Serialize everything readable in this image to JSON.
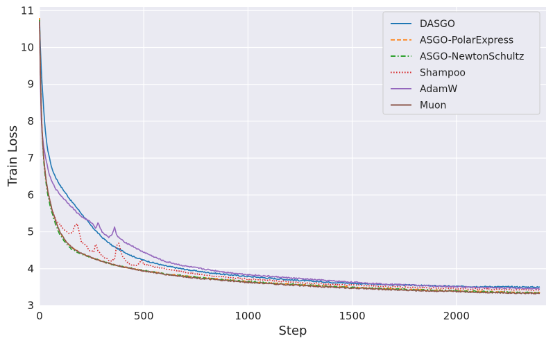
{
  "chart_data": {
    "type": "line",
    "title": "",
    "xlabel": "Step",
    "ylabel": "Train Loss",
    "xlim": [
      0,
      2430
    ],
    "ylim": [
      3,
      11.1
    ],
    "xticks": [
      0,
      500,
      1000,
      1500,
      2000
    ],
    "xtick_labels": [
      "0",
      "500",
      "1000",
      "1500",
      "2000"
    ],
    "yticks": [
      3,
      4,
      5,
      6,
      7,
      8,
      9,
      10,
      11
    ],
    "ytick_labels": [
      "3",
      "4",
      "5",
      "6",
      "7",
      "8",
      "9",
      "10",
      "11"
    ],
    "grid": true,
    "legend_position": "top-right",
    "series": [
      {
        "name": "DASGO",
        "color": "#1f77b4",
        "dash": "solid",
        "x": [
          0,
          5,
          10,
          20,
          30,
          40,
          50,
          60,
          80,
          100,
          125,
          150,
          175,
          200,
          250,
          300,
          350,
          400,
          450,
          500,
          600,
          700,
          800,
          900,
          1000,
          1200,
          1400,
          1600,
          1800,
          2000,
          2200,
          2400
        ],
        "y": [
          10.75,
          9.8,
          9.2,
          8.3,
          7.6,
          7.2,
          6.95,
          6.7,
          6.45,
          6.25,
          6.05,
          5.85,
          5.68,
          5.5,
          5.15,
          4.85,
          4.62,
          4.47,
          4.33,
          4.23,
          4.08,
          3.98,
          3.9,
          3.84,
          3.79,
          3.7,
          3.63,
          3.58,
          3.55,
          3.52,
          3.51,
          3.5
        ]
      },
      {
        "name": "ASGO-PolarExpress",
        "color": "#ff7f0e",
        "dash": "dashed",
        "x": [
          0,
          5,
          10,
          20,
          30,
          40,
          50,
          60,
          80,
          100,
          125,
          150,
          175,
          200,
          250,
          300,
          350,
          400,
          500,
          600,
          700,
          800,
          1000,
          1200,
          1400,
          1600,
          1800,
          2000,
          2200,
          2400
        ],
        "y": [
          10.8,
          9.0,
          8.0,
          7.0,
          6.45,
          6.1,
          5.82,
          5.6,
          5.25,
          4.98,
          4.75,
          4.6,
          4.5,
          4.42,
          4.3,
          4.2,
          4.12,
          4.05,
          3.95,
          3.86,
          3.8,
          3.74,
          3.65,
          3.58,
          3.52,
          3.47,
          3.43,
          3.4,
          3.37,
          3.35
        ]
      },
      {
        "name": "ASGO-NewtonSchultz",
        "color": "#2ca02c",
        "dash": "dashdot",
        "x": [
          0,
          5,
          10,
          20,
          30,
          40,
          50,
          60,
          80,
          100,
          125,
          150,
          175,
          200,
          250,
          300,
          350,
          400,
          500,
          600,
          700,
          800,
          1000,
          1200,
          1400,
          1600,
          1800,
          2000,
          2200,
          2400
        ],
        "y": [
          10.75,
          8.9,
          7.9,
          6.9,
          6.35,
          6.0,
          5.72,
          5.5,
          5.15,
          4.9,
          4.7,
          4.55,
          4.46,
          4.4,
          4.3,
          4.2,
          4.12,
          4.05,
          3.95,
          3.86,
          3.8,
          3.74,
          3.65,
          3.58,
          3.52,
          3.47,
          3.43,
          3.4,
          3.37,
          3.35
        ]
      },
      {
        "name": "Shampoo",
        "color": "#d62728",
        "dash": "dotted",
        "x": [
          0,
          5,
          10,
          20,
          30,
          40,
          50,
          60,
          80,
          100,
          120,
          140,
          160,
          170,
          180,
          190,
          200,
          220,
          240,
          260,
          270,
          280,
          300,
          320,
          340,
          360,
          370,
          380,
          390,
          400,
          420,
          440,
          460,
          480,
          490,
          500,
          550,
          600,
          700,
          800,
          1000,
          1200,
          1400,
          1600,
          1800,
          2000,
          2200,
          2400
        ],
        "y": [
          10.7,
          8.9,
          7.9,
          7.0,
          6.45,
          6.1,
          5.85,
          5.6,
          5.3,
          5.2,
          5.05,
          4.95,
          5.0,
          5.2,
          5.22,
          5.0,
          4.75,
          4.65,
          4.5,
          4.45,
          4.7,
          4.5,
          4.35,
          4.28,
          4.2,
          4.25,
          4.65,
          4.7,
          4.45,
          4.3,
          4.18,
          4.12,
          4.08,
          4.15,
          4.25,
          4.12,
          4.05,
          4.0,
          3.9,
          3.82,
          3.72,
          3.64,
          3.58,
          3.53,
          3.49,
          3.46,
          3.44,
          3.42
        ]
      },
      {
        "name": "AdamW",
        "color": "#9467bd",
        "dash": "solid",
        "x": [
          0,
          5,
          10,
          20,
          30,
          40,
          50,
          60,
          80,
          100,
          125,
          150,
          175,
          200,
          220,
          250,
          270,
          280,
          300,
          330,
          350,
          360,
          370,
          400,
          450,
          480,
          500,
          550,
          600,
          700,
          800,
          900,
          1000,
          1200,
          1400,
          1600,
          1800,
          2000,
          2200,
          2400
        ],
        "y": [
          10.7,
          8.6,
          7.8,
          7.3,
          7.0,
          6.7,
          6.5,
          6.35,
          6.15,
          6.0,
          5.85,
          5.7,
          5.55,
          5.42,
          5.35,
          5.25,
          5.1,
          5.25,
          5.0,
          4.85,
          4.95,
          5.12,
          4.9,
          4.75,
          4.6,
          4.5,
          4.45,
          4.32,
          4.2,
          4.07,
          3.98,
          3.9,
          3.84,
          3.75,
          3.67,
          3.6,
          3.55,
          3.51,
          3.48,
          3.46
        ]
      },
      {
        "name": "Muon",
        "color": "#8c564b",
        "dash": "solid",
        "x": [
          0,
          5,
          10,
          20,
          30,
          40,
          50,
          60,
          80,
          100,
          125,
          150,
          175,
          200,
          250,
          300,
          350,
          400,
          500,
          600,
          700,
          800,
          1000,
          1200,
          1400,
          1600,
          1800,
          2000,
          2200,
          2400
        ],
        "y": [
          10.7,
          8.95,
          7.95,
          7.0,
          6.45,
          6.1,
          5.85,
          5.6,
          5.25,
          4.98,
          4.75,
          4.6,
          4.5,
          4.42,
          4.3,
          4.2,
          4.12,
          4.05,
          3.94,
          3.85,
          3.78,
          3.72,
          3.63,
          3.56,
          3.5,
          3.45,
          3.41,
          3.38,
          3.35,
          3.33
        ]
      }
    ]
  }
}
